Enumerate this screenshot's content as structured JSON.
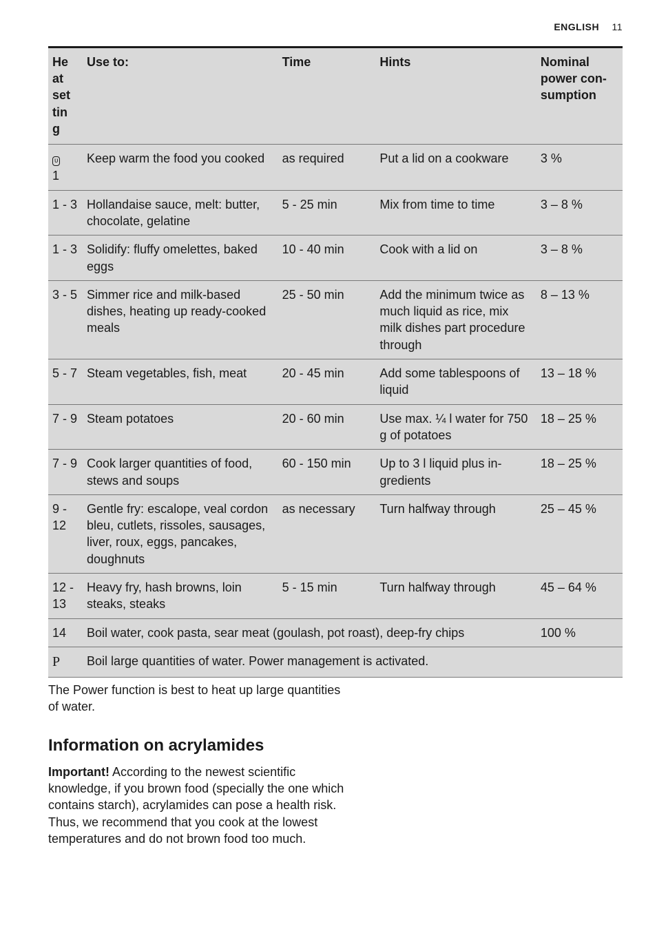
{
  "header": {
    "language": "ENGLISH",
    "page_number": "11"
  },
  "table": {
    "columns": [
      {
        "label": "He\nat\nset\ntin\ng"
      },
      {
        "label": "Use to:"
      },
      {
        "label": "Time"
      },
      {
        "label": "Hints"
      },
      {
        "label": "Nominal power con­sumption"
      }
    ],
    "rows": [
      {
        "setting_glyph": "υ",
        "setting_extra": "1",
        "use": "Keep warm the food you cooked",
        "time": "as required",
        "hints": "Put a lid on a cook­ware",
        "power": "3 %"
      },
      {
        "setting": "1 - 3",
        "use": "Hollandaise sauce, melt: butter, chocolate, gelatine",
        "time": "5 - 25 min",
        "hints": "Mix from time to time",
        "power": "3 – 8 %"
      },
      {
        "setting": "1 - 3",
        "use": "Solidify: fluffy omelettes, baked eggs",
        "time": "10 - 40 min",
        "hints": "Cook with a lid on",
        "power": "3 – 8 %"
      },
      {
        "setting": "3 - 5",
        "use": "Simmer rice and milk-based dishes, heating up ready-cooked meals",
        "time": "25 - 50 min",
        "hints": "Add the minimum twice as much liquid as rice, mix milk dishes part procedure through",
        "power": "8 – 13 %"
      },
      {
        "setting": "5 - 7",
        "use": "Steam vegetables, fish, meat",
        "time": "20 - 45 min",
        "hints": "Add some table­spoons of liquid",
        "power": "13 – 18 %"
      },
      {
        "setting": "7 - 9",
        "use": "Steam potatoes",
        "time": "20 - 60 min",
        "hints": "Use max. ¼ l water for 750 g of potatoes",
        "power": "18 – 25 %"
      },
      {
        "setting": "7 - 9",
        "use": "Cook larger quantities of food, stews and soups",
        "time": "60 - 150 min",
        "hints": "Up to 3 l liquid plus in­gredients",
        "power": "18 – 25 %"
      },
      {
        "setting": "9 - 12",
        "use": "Gentle fry: escalope, veal cordon bleu, cut­lets, rissoles, sausages, liver, roux, eggs, pan­cakes, doughnuts",
        "time": "as necessa­ry",
        "hints": "Turn halfway through",
        "power": "25 – 45 %"
      },
      {
        "setting": "12 - 13",
        "use": "Heavy fry, hash browns, loin steaks, steaks",
        "time": "5 - 15 min",
        "hints": "Turn halfway through",
        "power": "45 – 64 %"
      },
      {
        "setting": "14",
        "use_span": "Boil water, cook pasta, sear meat (goulash, pot roast), deep-fry chips",
        "power": "100 %"
      },
      {
        "setting_is_p": true,
        "setting": "P",
        "use_full": "Boil large quantities of water. Power management is activated."
      }
    ]
  },
  "post_note": "The Power function is best to heat up large quantities of water.",
  "section_title": "Information on acrylamides",
  "important": {
    "label": "Important!",
    "text": " According to the newest scientific knowledge, if you brown food (specially the one which contains starch), acrylamides can pose a health risk. Thus, we recommend that you cook at the lowest temperatures and do not brown food too much."
  }
}
